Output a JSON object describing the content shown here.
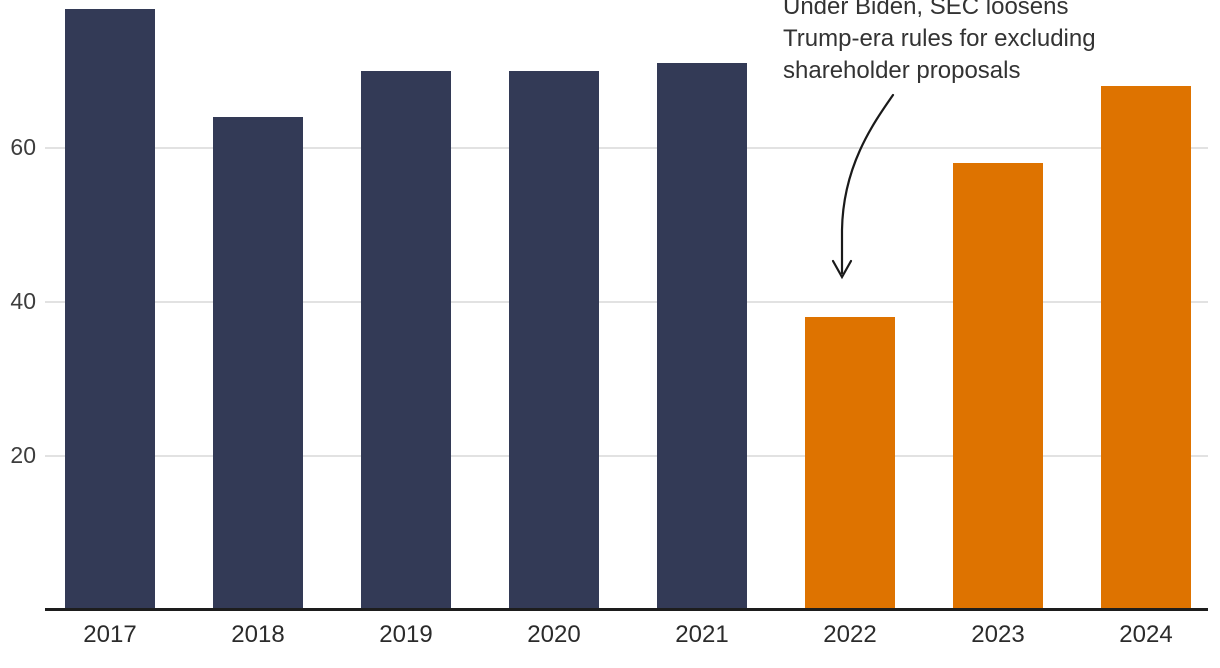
{
  "chart_data": {
    "type": "bar",
    "categories": [
      "2017",
      "2018",
      "2019",
      "2020",
      "2021",
      "2022",
      "2023",
      "2024"
    ],
    "values": [
      78,
      64,
      70,
      70,
      71,
      38,
      58,
      68
    ],
    "bar_colors": [
      "#333A56",
      "#333A56",
      "#333A56",
      "#333A56",
      "#333A56",
      "#DE7300",
      "#DE7300",
      "#DE7300"
    ],
    "title": "",
    "xlabel": "",
    "ylabel": "",
    "ylim": [
      0,
      80
    ],
    "yticks": [
      20,
      40,
      60
    ],
    "grid": "horizontal-only",
    "legend": "none",
    "annotation": {
      "lines": [
        "Under Biden, SEC loosens",
        "Trump-era rules for excluding",
        "shareholder proposals"
      ],
      "target_category": "2022"
    }
  },
  "colors": {
    "default_bar": "#333A56",
    "highlight_bar": "#DE7300",
    "gridline": "#e2e2e2",
    "axis_line": "#1d1d1d",
    "tick_label": "#3d3d3d",
    "annotation_text": "#333333",
    "arrow": "#1a1a1a",
    "background": "#ffffff"
  }
}
